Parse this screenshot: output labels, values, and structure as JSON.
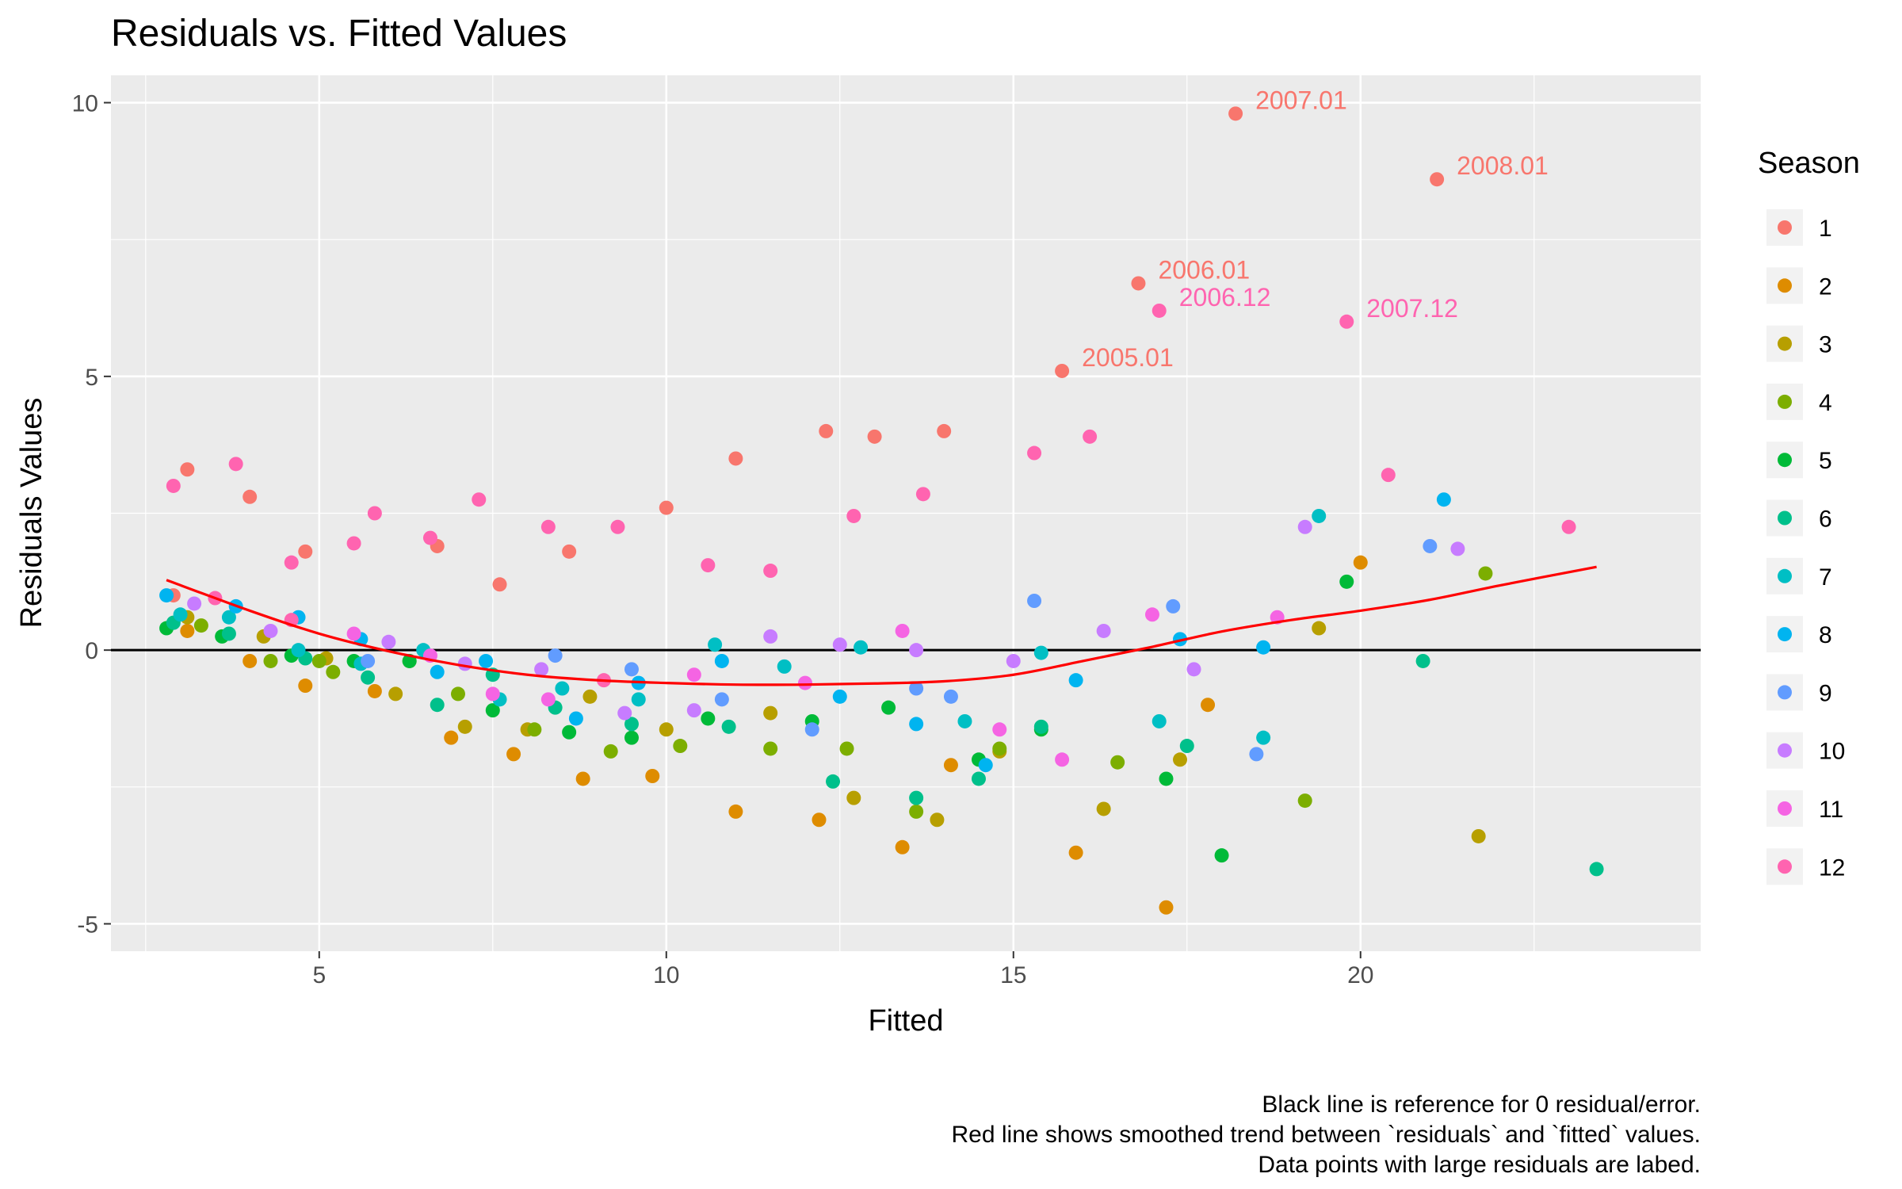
{
  "chart_data": {
    "type": "scatter",
    "title": "Residuals vs. Fitted Values",
    "xlabel": "Fitted",
    "ylabel": "Residuals Values",
    "xlim": [
      2.0,
      24.9
    ],
    "ylim": [
      -5.5,
      10.5
    ],
    "x_ticks": [
      5,
      10,
      15,
      20
    ],
    "y_ticks": [
      -5,
      0,
      5,
      10
    ],
    "x_tick_labels": [
      "5",
      "10",
      "15",
      "20"
    ],
    "y_tick_labels": [
      "-5",
      "0",
      "5",
      "10"
    ],
    "grid": true,
    "legend": {
      "title": "Season",
      "position": "right"
    },
    "caption": [
      "Black line is reference for 0 residual/error.",
      "Red line shows smoothed trend between `residuals` and `fitted` values.",
      "Data points with large residuals are labed."
    ],
    "reference_line": {
      "y": 0,
      "color": "#000000"
    },
    "smooth_line": {
      "color": "#ff0000",
      "x": [
        2.8,
        4,
        5,
        6,
        7,
        8,
        9,
        10,
        11,
        12,
        13,
        14,
        15,
        16,
        17,
        18,
        19,
        20,
        21,
        22,
        23.4
      ],
      "y": [
        1.28,
        0.72,
        0.3,
        -0.02,
        -0.27,
        -0.45,
        -0.55,
        -0.6,
        -0.63,
        -0.63,
        -0.61,
        -0.57,
        -0.45,
        -0.2,
        0.06,
        0.34,
        0.55,
        0.72,
        0.92,
        1.18,
        1.52
      ]
    },
    "series": [
      {
        "name": "1",
        "color": "#F8766D",
        "points": [
          [
            3.1,
            3.3
          ],
          [
            4.0,
            2.8
          ],
          [
            4.8,
            1.8
          ],
          [
            6.7,
            1.9
          ],
          [
            7.6,
            1.2
          ],
          [
            8.6,
            1.8
          ],
          [
            10.0,
            2.6
          ],
          [
            11.0,
            3.5
          ],
          [
            12.3,
            4.0
          ],
          [
            13.0,
            3.9
          ],
          [
            14.0,
            4.0
          ],
          [
            15.7,
            5.1
          ],
          [
            16.8,
            6.7
          ],
          [
            18.2,
            9.8
          ],
          [
            21.1,
            8.6
          ],
          [
            2.9,
            1.0
          ]
        ]
      },
      {
        "name": "2",
        "color": "#DE8C00",
        "points": [
          [
            3.1,
            0.35
          ],
          [
            4.0,
            -0.2
          ],
          [
            4.8,
            -0.65
          ],
          [
            5.8,
            -0.75
          ],
          [
            6.9,
            -1.6
          ],
          [
            7.8,
            -1.9
          ],
          [
            8.8,
            -2.35
          ],
          [
            9.8,
            -2.3
          ],
          [
            11.0,
            -2.95
          ],
          [
            12.2,
            -3.1
          ],
          [
            13.4,
            -3.6
          ],
          [
            14.1,
            -2.1
          ],
          [
            15.9,
            -3.7
          ],
          [
            17.2,
            -4.7
          ],
          [
            17.8,
            -1.0
          ],
          [
            20.0,
            1.6
          ]
        ]
      },
      {
        "name": "3",
        "color": "#B79F00",
        "points": [
          [
            3.1,
            0.6
          ],
          [
            4.2,
            0.25
          ],
          [
            5.1,
            -0.15
          ],
          [
            6.1,
            -0.8
          ],
          [
            7.1,
            -1.4
          ],
          [
            8.0,
            -1.45
          ],
          [
            8.9,
            -0.85
          ],
          [
            10.0,
            -1.45
          ],
          [
            11.5,
            -1.15
          ],
          [
            12.7,
            -2.7
          ],
          [
            13.9,
            -3.1
          ],
          [
            14.8,
            -1.85
          ],
          [
            16.3,
            -2.9
          ],
          [
            17.4,
            -2.0
          ],
          [
            19.4,
            0.4
          ],
          [
            21.7,
            -3.4
          ]
        ]
      },
      {
        "name": "4",
        "color": "#7CAE00",
        "points": [
          [
            3.3,
            0.45
          ],
          [
            4.3,
            -0.2
          ],
          [
            5.2,
            -0.4
          ],
          [
            6.3,
            -0.2
          ],
          [
            7.0,
            -0.8
          ],
          [
            8.1,
            -1.45
          ],
          [
            9.2,
            -1.85
          ],
          [
            10.2,
            -1.75
          ],
          [
            11.5,
            -1.8
          ],
          [
            12.6,
            -1.8
          ],
          [
            13.6,
            -2.95
          ],
          [
            14.8,
            -1.8
          ],
          [
            16.5,
            -2.05
          ],
          [
            19.2,
            -2.75
          ],
          [
            21.8,
            1.4
          ],
          [
            5.0,
            -0.2
          ]
        ]
      },
      {
        "name": "5",
        "color": "#00BA38",
        "points": [
          [
            2.8,
            0.4
          ],
          [
            3.6,
            0.25
          ],
          [
            4.6,
            -0.1
          ],
          [
            5.5,
            -0.2
          ],
          [
            6.3,
            -0.2
          ],
          [
            7.5,
            -1.1
          ],
          [
            8.6,
            -1.5
          ],
          [
            9.5,
            -1.6
          ],
          [
            10.6,
            -1.25
          ],
          [
            12.1,
            -1.3
          ],
          [
            13.2,
            -1.05
          ],
          [
            14.5,
            -2.0
          ],
          [
            15.4,
            -1.45
          ],
          [
            17.2,
            -2.35
          ],
          [
            18.0,
            -3.75
          ],
          [
            19.8,
            1.25
          ]
        ]
      },
      {
        "name": "6",
        "color": "#00C08B",
        "points": [
          [
            2.9,
            0.5
          ],
          [
            3.7,
            0.3
          ],
          [
            4.8,
            -0.15
          ],
          [
            5.7,
            -0.5
          ],
          [
            6.7,
            -1.0
          ],
          [
            7.5,
            -0.45
          ],
          [
            8.4,
            -1.05
          ],
          [
            9.5,
            -1.35
          ],
          [
            10.9,
            -1.4
          ],
          [
            12.4,
            -2.4
          ],
          [
            13.6,
            -2.7
          ],
          [
            14.5,
            -2.35
          ],
          [
            15.4,
            -1.4
          ],
          [
            17.5,
            -1.75
          ],
          [
            20.9,
            -0.2
          ],
          [
            23.4,
            -4.0
          ]
        ]
      },
      {
        "name": "7",
        "color": "#00BFC4",
        "points": [
          [
            3.0,
            0.65
          ],
          [
            3.7,
            0.6
          ],
          [
            4.7,
            0.0
          ],
          [
            5.6,
            -0.25
          ],
          [
            6.5,
            0.0
          ],
          [
            7.6,
            -0.9
          ],
          [
            8.5,
            -0.7
          ],
          [
            9.6,
            -0.9
          ],
          [
            10.7,
            0.1
          ],
          [
            11.7,
            -0.3
          ],
          [
            12.8,
            0.05
          ],
          [
            14.3,
            -1.3
          ],
          [
            15.4,
            -0.05
          ],
          [
            17.1,
            -1.3
          ],
          [
            18.6,
            -1.6
          ],
          [
            19.4,
            2.45
          ]
        ]
      },
      {
        "name": "8",
        "color": "#00B4F0",
        "points": [
          [
            2.8,
            1.0
          ],
          [
            3.8,
            0.8
          ],
          [
            4.7,
            0.6
          ],
          [
            5.6,
            0.2
          ],
          [
            6.7,
            -0.4
          ],
          [
            7.4,
            -0.2
          ],
          [
            8.7,
            -1.25
          ],
          [
            9.6,
            -0.6
          ],
          [
            10.8,
            -0.2
          ],
          [
            12.5,
            -0.85
          ],
          [
            13.6,
            -1.35
          ],
          [
            14.6,
            -2.1
          ],
          [
            15.9,
            -0.55
          ],
          [
            17.4,
            0.2
          ],
          [
            18.6,
            0.05
          ],
          [
            21.2,
            2.75
          ]
        ]
      },
      {
        "name": "9",
        "color": "#619CFF",
        "points": [
          [
            5.7,
            -0.2
          ],
          [
            8.4,
            -0.1
          ],
          [
            9.5,
            -0.35
          ],
          [
            10.8,
            -0.9
          ],
          [
            12.1,
            -1.45
          ],
          [
            13.6,
            -0.7
          ],
          [
            14.1,
            -0.85
          ],
          [
            15.3,
            0.9
          ],
          [
            17.3,
            0.8
          ],
          [
            18.5,
            -1.9
          ],
          [
            21.0,
            1.9
          ]
        ]
      },
      {
        "name": "10",
        "color": "#C77CFF",
        "points": [
          [
            3.2,
            0.85
          ],
          [
            4.3,
            0.35
          ],
          [
            6.0,
            0.15
          ],
          [
            7.1,
            -0.25
          ],
          [
            8.2,
            -0.35
          ],
          [
            9.4,
            -1.15
          ],
          [
            10.4,
            -1.1
          ],
          [
            11.5,
            0.25
          ],
          [
            12.5,
            0.1
          ],
          [
            13.6,
            0.0
          ],
          [
            15.0,
            -0.2
          ],
          [
            16.3,
            0.35
          ],
          [
            17.6,
            -0.35
          ],
          [
            19.2,
            2.25
          ],
          [
            21.4,
            1.85
          ]
        ]
      },
      {
        "name": "11",
        "color": "#F564E3",
        "points": [
          [
            5.5,
            0.3
          ],
          [
            6.6,
            -0.1
          ],
          [
            7.5,
            -0.8
          ],
          [
            8.3,
            -0.9
          ],
          [
            10.4,
            -0.45
          ],
          [
            12.0,
            -0.6
          ],
          [
            13.4,
            0.35
          ],
          [
            14.8,
            -1.45
          ],
          [
            15.7,
            -2.0
          ],
          [
            17.0,
            0.65
          ],
          [
            18.8,
            0.6
          ]
        ]
      },
      {
        "name": "12",
        "color": "#FF64B0",
        "points": [
          [
            2.9,
            3.0
          ],
          [
            3.5,
            0.95
          ],
          [
            3.8,
            3.4
          ],
          [
            4.6,
            1.6
          ],
          [
            5.5,
            1.95
          ],
          [
            5.8,
            2.5
          ],
          [
            6.6,
            2.05
          ],
          [
            7.3,
            2.75
          ],
          [
            8.3,
            2.25
          ],
          [
            9.3,
            2.25
          ],
          [
            9.1,
            -0.55
          ],
          [
            10.6,
            1.55
          ],
          [
            11.5,
            1.45
          ],
          [
            12.7,
            2.45
          ],
          [
            13.7,
            2.85
          ],
          [
            15.3,
            3.6
          ],
          [
            16.1,
            3.9
          ],
          [
            17.1,
            6.2
          ],
          [
            19.8,
            6.0
          ],
          [
            20.4,
            3.2
          ],
          [
            23.0,
            2.25
          ],
          [
            4.6,
            0.55
          ]
        ]
      }
    ],
    "annotations": [
      {
        "text": "2007.01",
        "x": 18.2,
        "y": 9.8,
        "color": "#F8766D"
      },
      {
        "text": "2008.01",
        "x": 21.1,
        "y": 8.6,
        "color": "#F8766D"
      },
      {
        "text": "2006.01",
        "x": 16.8,
        "y": 6.7,
        "color": "#F8766D"
      },
      {
        "text": "2006.12",
        "x": 17.1,
        "y": 6.2,
        "color": "#FF64B0"
      },
      {
        "text": "2007.12",
        "x": 19.8,
        "y": 6.0,
        "color": "#FF64B0"
      },
      {
        "text": "2005.01",
        "x": 15.7,
        "y": 5.1,
        "color": "#F8766D"
      }
    ]
  }
}
